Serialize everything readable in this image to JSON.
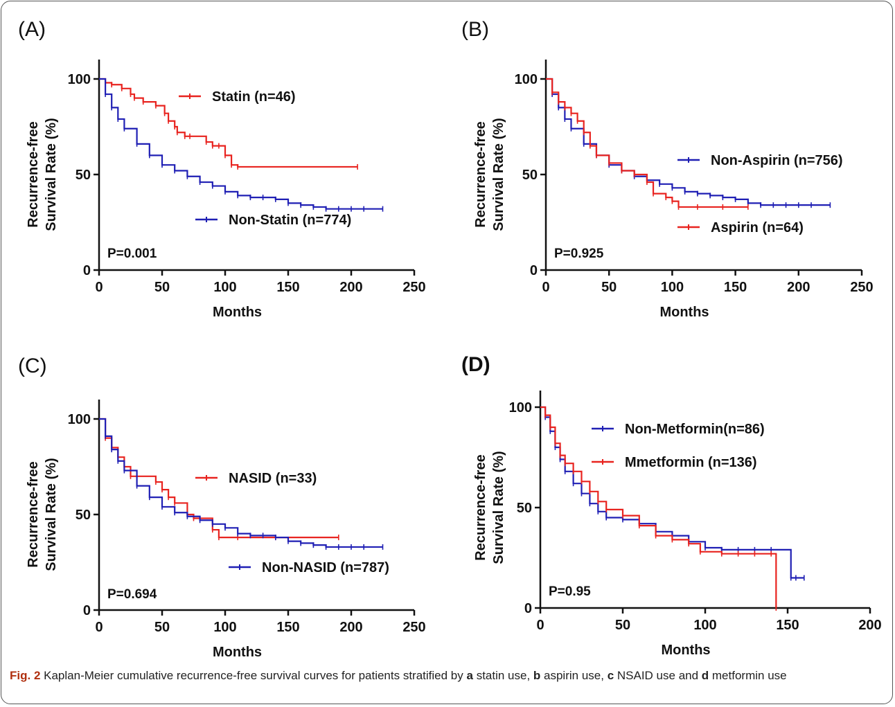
{
  "caption": {
    "fig_label": "Fig. 2",
    "text_1": " Kaplan-Meier cumulative recurrence-free survival curves for patients stratified by ",
    "a": "a",
    "text_2": " statin use, ",
    "b": "b",
    "text_3": " aspirin use, ",
    "c": "c",
    "text_4": " NSAID use and ",
    "d": "d",
    "text_5": " metformin use"
  },
  "chart_data": [
    {
      "panel": "(A)",
      "type": "line",
      "ylabel_line1": "Recurrence-free",
      "ylabel_line2": "Survival Rate (%)",
      "xlabel": "Months",
      "xlim": [
        0,
        250
      ],
      "ylim": [
        0,
        100
      ],
      "xticks": [
        "0",
        "50",
        "100",
        "150",
        "200",
        "250"
      ],
      "yticks": [
        "0",
        "50",
        "100"
      ],
      "pvalue": "P=0.001",
      "series": [
        {
          "name": "Statin (n=46)",
          "color": "#e8231f",
          "legend_pos": "top",
          "x": [
            0,
            5,
            10,
            18,
            25,
            28,
            35,
            45,
            52,
            55,
            60,
            62,
            68,
            72,
            85,
            90,
            95,
            100,
            105,
            110,
            205
          ],
          "y": [
            100,
            98,
            97,
            95,
            92,
            90,
            88,
            86,
            82,
            78,
            75,
            72,
            70,
            70,
            67,
            65,
            65,
            60,
            55,
            54,
            54
          ]
        },
        {
          "name": "Non-Statin (n=774)",
          "color": "#1f1fb4",
          "legend_pos": "bottom",
          "x": [
            0,
            5,
            10,
            15,
            20,
            30,
            40,
            50,
            60,
            70,
            80,
            90,
            100,
            110,
            120,
            130,
            140,
            150,
            160,
            170,
            180,
            190,
            200,
            210,
            225
          ],
          "y": [
            100,
            92,
            85,
            79,
            74,
            66,
            60,
            55,
            52,
            49,
            46,
            44,
            41,
            39,
            38,
            38,
            37,
            35,
            34,
            33,
            32,
            32,
            32,
            32,
            32
          ]
        }
      ]
    },
    {
      "panel": "(B)",
      "type": "line",
      "ylabel_line1": "Recurrence-free",
      "ylabel_line2": "Survival Rate (%)",
      "xlabel": "Months",
      "xlim": [
        0,
        250
      ],
      "ylim": [
        0,
        100
      ],
      "xticks": [
        "0",
        "50",
        "100",
        "150",
        "200",
        "250"
      ],
      "yticks": [
        "0",
        "50",
        "100"
      ],
      "pvalue": "P=0.925",
      "series": [
        {
          "name": "Non-Aspirin (n=756)",
          "color": "#1f1fb4",
          "legend_pos": "top",
          "x": [
            0,
            5,
            10,
            15,
            20,
            30,
            40,
            50,
            60,
            70,
            80,
            90,
            100,
            110,
            120,
            130,
            140,
            150,
            160,
            170,
            180,
            190,
            200,
            210,
            225
          ],
          "y": [
            100,
            92,
            85,
            79,
            74,
            66,
            60,
            55,
            52,
            49,
            47,
            45,
            43,
            41,
            40,
            39,
            38,
            37,
            35,
            34,
            34,
            34,
            34,
            34,
            34
          ]
        },
        {
          "name": "Aspirin (n=64)",
          "color": "#e8231f",
          "legend_pos": "bottom",
          "x": [
            0,
            5,
            10,
            15,
            20,
            25,
            30,
            35,
            40,
            50,
            60,
            70,
            80,
            85,
            95,
            100,
            105,
            120,
            140,
            160
          ],
          "y": [
            100,
            93,
            88,
            85,
            82,
            78,
            72,
            65,
            60,
            56,
            52,
            50,
            46,
            40,
            38,
            36,
            33,
            33,
            33,
            33
          ]
        }
      ]
    },
    {
      "panel": "(C)",
      "type": "line",
      "ylabel_line1": "Recurrence-free",
      "ylabel_line2": "Survival Rate (%)",
      "xlabel": "Months",
      "xlim": [
        0,
        250
      ],
      "ylim": [
        0,
        100
      ],
      "xticks": [
        "0",
        "50",
        "100",
        "150",
        "200",
        "250"
      ],
      "yticks": [
        "0",
        "50",
        "100"
      ],
      "pvalue": "P=0.694",
      "series": [
        {
          "name": "NASID (n=33)",
          "color": "#e8231f",
          "legend_pos": "top",
          "x": [
            0,
            5,
            10,
            15,
            20,
            25,
            45,
            50,
            55,
            60,
            70,
            75,
            90,
            95,
            110,
            140,
            190
          ],
          "y": [
            100,
            90,
            85,
            80,
            75,
            70,
            67,
            63,
            59,
            56,
            50,
            48,
            42,
            38,
            38,
            38,
            38
          ]
        },
        {
          "name": "Non-NASID (n=787)",
          "color": "#1f1fb4",
          "legend_pos": "bottom",
          "x": [
            0,
            5,
            10,
            15,
            20,
            30,
            40,
            50,
            60,
            70,
            80,
            90,
            100,
            110,
            120,
            130,
            140,
            150,
            160,
            170,
            180,
            190,
            200,
            210,
            225
          ],
          "y": [
            100,
            91,
            84,
            78,
            73,
            65,
            59,
            54,
            51,
            49,
            47,
            45,
            43,
            40,
            39,
            39,
            38,
            36,
            35,
            34,
            33,
            33,
            33,
            33,
            33
          ]
        }
      ]
    },
    {
      "panel": "(D)",
      "type": "line",
      "ylabel_line1": "Recurrence-free",
      "ylabel_line2": "Survival Rate (%)",
      "xlabel": "Months",
      "xlim": [
        0,
        200
      ],
      "ylim": [
        0,
        100
      ],
      "xticks": [
        "0",
        "50",
        "100",
        "150",
        "200"
      ],
      "yticks": [
        "0",
        "50",
        "100"
      ],
      "pvalue": "P=0.95",
      "series": [
        {
          "name": "Non-Metformin(n=86)",
          "color": "#1f1fb4",
          "legend_pos": "top",
          "x": [
            0,
            3,
            6,
            9,
            12,
            15,
            20,
            25,
            30,
            35,
            40,
            50,
            60,
            70,
            80,
            90,
            100,
            110,
            120,
            130,
            140,
            152,
            155,
            160
          ],
          "y": [
            100,
            95,
            88,
            80,
            74,
            68,
            62,
            57,
            52,
            48,
            45,
            44,
            42,
            38,
            36,
            33,
            30,
            29,
            29,
            29,
            29,
            15,
            15,
            15
          ]
        },
        {
          "name": "Mmetformin (n=136)",
          "color": "#e8231f",
          "legend_pos": "bottom",
          "x": [
            0,
            3,
            6,
            9,
            12,
            15,
            20,
            25,
            30,
            35,
            40,
            50,
            60,
            70,
            80,
            90,
            97,
            110,
            120,
            130,
            140,
            143
          ],
          "y": [
            100,
            96,
            90,
            82,
            76,
            72,
            68,
            63,
            58,
            53,
            49,
            46,
            41,
            36,
            34,
            32,
            28,
            27,
            27,
            27,
            27,
            0
          ]
        }
      ]
    }
  ]
}
